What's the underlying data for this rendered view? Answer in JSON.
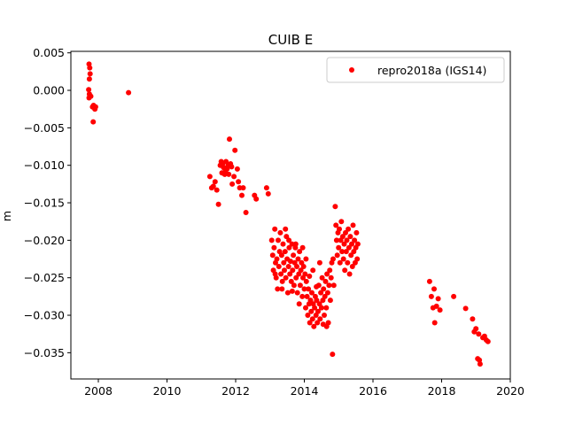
{
  "chart_data": {
    "type": "scatter",
    "title": "CUIB E",
    "xlabel": "",
    "ylabel": "m",
    "xlim": [
      2007.2,
      2020.0
    ],
    "ylim": [
      -0.0385,
      0.0052
    ],
    "xticks": [
      2008,
      2010,
      2012,
      2014,
      2016,
      2018,
      2020
    ],
    "xtick_labels": [
      "2008",
      "2010",
      "2012",
      "2014",
      "2016",
      "2018",
      "2020"
    ],
    "yticks": [
      0.005,
      0.0,
      -0.005,
      -0.01,
      -0.015,
      -0.02,
      -0.025,
      -0.03,
      -0.035
    ],
    "ytick_labels": [
      "0.005",
      "0.000",
      "−0.005",
      "−0.010",
      "−0.015",
      "−0.020",
      "−0.025",
      "−0.030",
      "−0.035"
    ],
    "grid": false,
    "legend_position": "top-right",
    "series": [
      {
        "name": "repro2018a (IGS14)",
        "color": "#ff0000",
        "marker": "circle",
        "points": [
          [
            2007.73,
            0.0035
          ],
          [
            2007.75,
            0.003
          ],
          [
            2007.76,
            0.0022
          ],
          [
            2007.74,
            0.0015
          ],
          [
            2007.72,
            0.0001
          ],
          [
            2007.74,
            -0.0005
          ],
          [
            2007.73,
            -0.001
          ],
          [
            2007.78,
            -0.0008
          ],
          [
            2007.83,
            -0.0022
          ],
          [
            2007.86,
            -0.002
          ],
          [
            2007.9,
            -0.0025
          ],
          [
            2007.92,
            -0.0022
          ],
          [
            2007.85,
            -0.0042
          ],
          [
            2008.88,
            -0.0003
          ],
          [
            2011.25,
            -0.0115
          ],
          [
            2011.3,
            -0.013
          ],
          [
            2011.35,
            -0.0128
          ],
          [
            2011.4,
            -0.0122
          ],
          [
            2011.45,
            -0.0133
          ],
          [
            2011.5,
            -0.0152
          ],
          [
            2011.55,
            -0.01
          ],
          [
            2011.58,
            -0.0095
          ],
          [
            2011.6,
            -0.011
          ],
          [
            2011.62,
            -0.0098
          ],
          [
            2011.65,
            -0.0103
          ],
          [
            2011.68,
            -0.0112
          ],
          [
            2011.7,
            -0.0108
          ],
          [
            2011.72,
            -0.0095
          ],
          [
            2011.75,
            -0.0105
          ],
          [
            2011.78,
            -0.01
          ],
          [
            2011.8,
            -0.0112
          ],
          [
            2011.82,
            -0.0065
          ],
          [
            2011.85,
            -0.0098
          ],
          [
            2011.88,
            -0.0102
          ],
          [
            2011.9,
            -0.0125
          ],
          [
            2011.95,
            -0.0115
          ],
          [
            2011.98,
            -0.008
          ],
          [
            2012.05,
            -0.0105
          ],
          [
            2012.08,
            -0.0122
          ],
          [
            2012.12,
            -0.013
          ],
          [
            2012.18,
            -0.014
          ],
          [
            2012.22,
            -0.013
          ],
          [
            2012.3,
            -0.0163
          ],
          [
            2012.55,
            -0.014
          ],
          [
            2012.6,
            -0.0145
          ],
          [
            2012.9,
            -0.013
          ],
          [
            2012.95,
            -0.0138
          ],
          [
            2013.05,
            -0.02
          ],
          [
            2013.08,
            -0.022
          ],
          [
            2013.1,
            -0.024
          ],
          [
            2013.12,
            -0.021
          ],
          [
            2013.14,
            -0.0185
          ],
          [
            2013.16,
            -0.023
          ],
          [
            2013.18,
            -0.025
          ],
          [
            2013.2,
            -0.0225
          ],
          [
            2013.22,
            -0.0265
          ],
          [
            2013.24,
            -0.02
          ],
          [
            2013.26,
            -0.0235
          ],
          [
            2013.28,
            -0.0215
          ],
          [
            2013.3,
            -0.019
          ],
          [
            2013.32,
            -0.0245
          ],
          [
            2013.34,
            -0.022
          ],
          [
            2013.36,
            -0.0255
          ],
          [
            2013.38,
            -0.0205
          ],
          [
            2013.4,
            -0.023
          ],
          [
            2013.42,
            -0.024
          ],
          [
            2013.44,
            -0.0215
          ],
          [
            2013.46,
            -0.025
          ],
          [
            2013.48,
            -0.0195
          ],
          [
            2013.5,
            -0.0225
          ],
          [
            2013.52,
            -0.027
          ],
          [
            2013.54,
            -0.0235
          ],
          [
            2013.56,
            -0.021
          ],
          [
            2013.58,
            -0.0245
          ],
          [
            2013.6,
            -0.0228
          ],
          [
            2013.62,
            -0.0255
          ],
          [
            2013.64,
            -0.0205
          ],
          [
            2013.66,
            -0.024
          ],
          [
            2013.68,
            -0.022
          ],
          [
            2013.7,
            -0.026
          ],
          [
            2013.72,
            -0.023
          ],
          [
            2013.74,
            -0.021
          ],
          [
            2013.76,
            -0.025
          ],
          [
            2013.78,
            -0.0235
          ],
          [
            2013.8,
            -0.027
          ],
          [
            2013.82,
            -0.0225
          ],
          [
            2013.84,
            -0.0245
          ],
          [
            2013.86,
            -0.0215
          ],
          [
            2013.88,
            -0.026
          ],
          [
            2013.9,
            -0.024
          ],
          [
            2013.92,
            -0.023
          ],
          [
            2013.94,
            -0.0275
          ],
          [
            2013.96,
            -0.025
          ],
          [
            2013.98,
            -0.0235
          ],
          [
            2014.0,
            -0.0265
          ],
          [
            2014.02,
            -0.0245
          ],
          [
            2014.04,
            -0.029
          ],
          [
            2014.06,
            -0.0255
          ],
          [
            2014.08,
            -0.0275
          ],
          [
            2014.1,
            -0.03
          ],
          [
            2014.12,
            -0.0265
          ],
          [
            2014.14,
            -0.0285
          ],
          [
            2014.16,
            -0.031
          ],
          [
            2014.18,
            -0.028
          ],
          [
            2014.2,
            -0.0295
          ],
          [
            2014.22,
            -0.027
          ],
          [
            2014.24,
            -0.0305
          ],
          [
            2014.26,
            -0.0285
          ],
          [
            2014.28,
            -0.0315
          ],
          [
            2014.3,
            -0.029
          ],
          [
            2014.32,
            -0.0275
          ],
          [
            2014.34,
            -0.03
          ],
          [
            2014.36,
            -0.028
          ],
          [
            2014.38,
            -0.031
          ],
          [
            2014.4,
            -0.0295
          ],
          [
            2014.42,
            -0.026
          ],
          [
            2014.44,
            -0.0285
          ],
          [
            2014.46,
            -0.0305
          ],
          [
            2014.48,
            -0.027
          ],
          [
            2014.5,
            -0.029
          ],
          [
            2014.52,
            -0.025
          ],
          [
            2014.54,
            -0.028
          ],
          [
            2014.56,
            -0.0265
          ],
          [
            2014.58,
            -0.03
          ],
          [
            2014.6,
            -0.0275
          ],
          [
            2014.62,
            -0.0255
          ],
          [
            2014.64,
            -0.029
          ],
          [
            2014.66,
            -0.0245
          ],
          [
            2014.68,
            -0.027
          ],
          [
            2014.7,
            -0.031
          ],
          [
            2014.72,
            -0.026
          ],
          [
            2014.74,
            -0.024
          ],
          [
            2014.76,
            -0.028
          ],
          [
            2014.78,
            -0.025
          ],
          [
            2014.8,
            -0.023
          ],
          [
            2014.82,
            -0.0352
          ],
          [
            2014.84,
            -0.0225
          ],
          [
            2014.86,
            -0.026
          ],
          [
            2013.15,
            -0.0245
          ],
          [
            2013.35,
            -0.0265
          ],
          [
            2013.55,
            -0.02
          ],
          [
            2013.75,
            -0.0205
          ],
          [
            2013.95,
            -0.021
          ],
          [
            2014.05,
            -0.0225
          ],
          [
            2014.25,
            -0.024
          ],
          [
            2014.45,
            -0.023
          ],
          [
            2014.65,
            -0.0315
          ],
          [
            2013.45,
            -0.0185
          ],
          [
            2013.65,
            -0.0268
          ],
          [
            2013.85,
            -0.0285
          ],
          [
            2014.15,
            -0.0248
          ],
          [
            2014.35,
            -0.0262
          ],
          [
            2014.55,
            -0.0312
          ],
          [
            2014.9,
            -0.0155
          ],
          [
            2014.92,
            -0.018
          ],
          [
            2014.94,
            -0.02
          ],
          [
            2014.96,
            -0.022
          ],
          [
            2014.98,
            -0.019
          ],
          [
            2015.0,
            -0.021
          ],
          [
            2015.02,
            -0.0185
          ],
          [
            2015.04,
            -0.023
          ],
          [
            2015.06,
            -0.02
          ],
          [
            2015.08,
            -0.0175
          ],
          [
            2015.1,
            -0.0215
          ],
          [
            2015.12,
            -0.0195
          ],
          [
            2015.14,
            -0.0225
          ],
          [
            2015.16,
            -0.0205
          ],
          [
            2015.18,
            -0.024
          ],
          [
            2015.2,
            -0.019
          ],
          [
            2015.22,
            -0.0215
          ],
          [
            2015.24,
            -0.02
          ],
          [
            2015.26,
            -0.023
          ],
          [
            2015.28,
            -0.0185
          ],
          [
            2015.3,
            -0.021
          ],
          [
            2015.32,
            -0.0245
          ],
          [
            2015.34,
            -0.0195
          ],
          [
            2015.36,
            -0.022
          ],
          [
            2015.38,
            -0.0205
          ],
          [
            2015.4,
            -0.0235
          ],
          [
            2015.42,
            -0.018
          ],
          [
            2015.44,
            -0.0215
          ],
          [
            2015.46,
            -0.02
          ],
          [
            2015.48,
            -0.023
          ],
          [
            2015.5,
            -0.021
          ],
          [
            2015.52,
            -0.019
          ],
          [
            2015.54,
            -0.0225
          ],
          [
            2015.56,
            -0.0205
          ],
          [
            2017.65,
            -0.0255
          ],
          [
            2017.7,
            -0.0275
          ],
          [
            2017.75,
            -0.029
          ],
          [
            2017.78,
            -0.0265
          ],
          [
            2017.8,
            -0.031
          ],
          [
            2017.85,
            -0.0288
          ],
          [
            2017.9,
            -0.0278
          ],
          [
            2017.95,
            -0.0293
          ],
          [
            2018.35,
            -0.0275
          ],
          [
            2018.7,
            -0.0291
          ],
          [
            2018.9,
            -0.0305
          ],
          [
            2018.95,
            -0.0322
          ],
          [
            2019.0,
            -0.0318
          ],
          [
            2019.05,
            -0.0358
          ],
          [
            2019.08,
            -0.0325
          ],
          [
            2019.1,
            -0.036
          ],
          [
            2019.12,
            -0.0365
          ],
          [
            2019.2,
            -0.033
          ],
          [
            2019.25,
            -0.0328
          ],
          [
            2019.3,
            -0.0333
          ],
          [
            2019.35,
            -0.0335
          ]
        ]
      }
    ]
  }
}
